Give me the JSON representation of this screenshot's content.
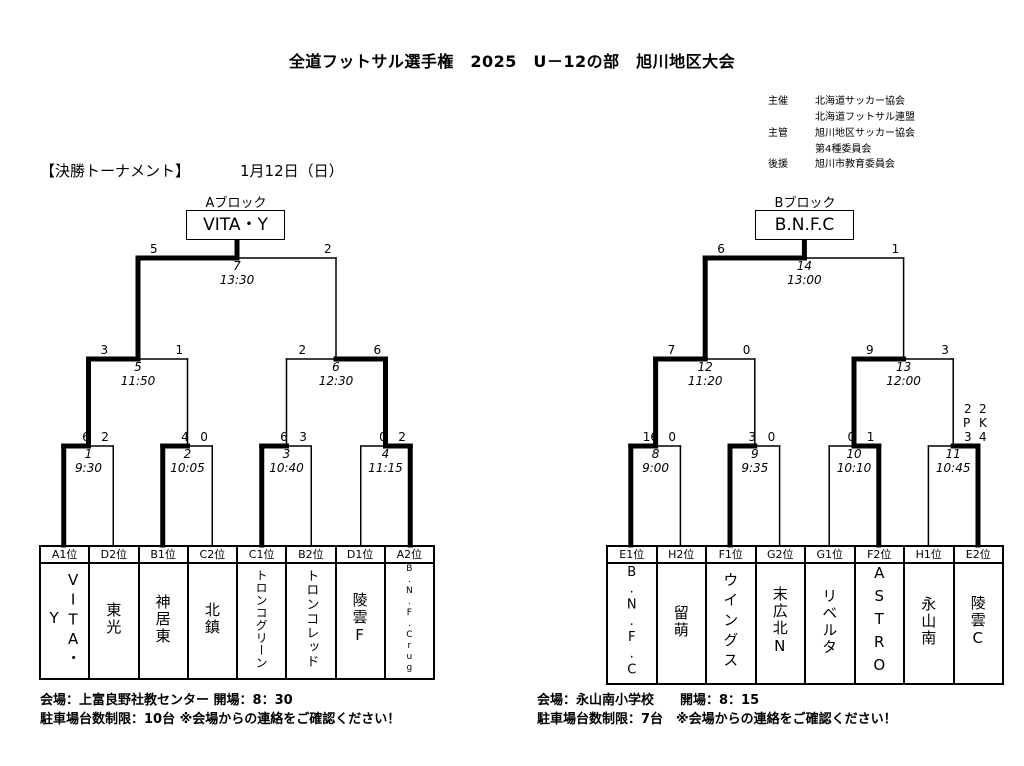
{
  "title": "全道フットサル選手権　2025　U－12の部　旭川地区大会",
  "organizers": [
    {
      "role": "主催",
      "name": "北海道サッカー協会"
    },
    {
      "role": "",
      "name": "北海道フットサル連盟"
    },
    {
      "role": "主管",
      "name": "旭川地区サッカー協会"
    },
    {
      "role": "",
      "name": "第4種委員会"
    },
    {
      "role": "後援",
      "name": "旭川市教育委員会"
    }
  ],
  "section_label": "【決勝トーナメント】",
  "date": "1月12日（日）",
  "brackets": [
    {
      "block": "Aブロック",
      "champion": "VITA・Y",
      "teams": [
        {
          "pos": "A1位",
          "name": "VITA・Y"
        },
        {
          "pos": "D2位",
          "name": "東光"
        },
        {
          "pos": "B1位",
          "name": "神居東"
        },
        {
          "pos": "C2位",
          "name": "北鎮"
        },
        {
          "pos": "C1位",
          "name": "トロンコグリーン"
        },
        {
          "pos": "B2位",
          "name": "トロンコレッド"
        },
        {
          "pos": "D1位",
          "name": "陵雲F"
        },
        {
          "pos": "A2位",
          "name": "B.N.F.Crug"
        }
      ],
      "matches": [
        {
          "no": "1",
          "time": "9:30",
          "score": [
            "6",
            "2"
          ],
          "winner": "left"
        },
        {
          "no": "2",
          "time": "10:05",
          "score": [
            "4",
            "0"
          ],
          "winner": "left"
        },
        {
          "no": "3",
          "time": "10:40",
          "score": [
            "6",
            "3"
          ],
          "winner": "left"
        },
        {
          "no": "4",
          "time": "11:15",
          "score": [
            "0",
            "2"
          ],
          "winner": "right"
        },
        {
          "no": "5",
          "time": "11:50",
          "score": [
            "3",
            "1"
          ],
          "winner": "left"
        },
        {
          "no": "6",
          "time": "12:30",
          "score": [
            "2",
            "6"
          ],
          "winner": "right"
        },
        {
          "no": "7",
          "time": "13:30",
          "score": [
            "5",
            "2"
          ],
          "winner": "left"
        }
      ],
      "footer": [
        "会場：上富良野社教センター 開場：8：30",
        "駐車場台数制限：10台 ※会場からの連絡をご確認ください！"
      ]
    },
    {
      "block": "Bブロック",
      "champion": "B.N.F.C",
      "teams": [
        {
          "pos": "E1位",
          "name": "B.N.F.C"
        },
        {
          "pos": "H2位",
          "name": "留萌"
        },
        {
          "pos": "F1位",
          "name": "ウイングス"
        },
        {
          "pos": "G2位",
          "name": "末広北N"
        },
        {
          "pos": "G1位",
          "name": "リベルタ"
        },
        {
          "pos": "F2位",
          "name": "ASTRO"
        },
        {
          "pos": "H1位",
          "name": "永山南"
        },
        {
          "pos": "E2位",
          "name": "陵雲C"
        }
      ],
      "matches": [
        {
          "no": "8",
          "time": "9:00",
          "score": [
            "16",
            "0"
          ],
          "winner": "left"
        },
        {
          "no": "9",
          "time": "9:35",
          "score": [
            "3",
            "0"
          ],
          "winner": "left"
        },
        {
          "no": "10",
          "time": "10:10",
          "score": [
            "0",
            "1"
          ],
          "winner": "right"
        },
        {
          "no": "11",
          "time": "10:45",
          "score": [
            "2",
            "2"
          ],
          "pk_label": [
            "P",
            "K"
          ],
          "pk": [
            "3",
            "4"
          ],
          "winner": "right"
        },
        {
          "no": "12",
          "time": "11:20",
          "score": [
            "7",
            "0"
          ],
          "winner": "left"
        },
        {
          "no": "13",
          "time": "12:00",
          "score": [
            "9",
            "3"
          ],
          "winner": "left"
        },
        {
          "no": "14",
          "time": "13:00",
          "score": [
            "6",
            "1"
          ],
          "winner": "left"
        }
      ],
      "footer": [
        "会場：永山南小学校　　開場：8：15",
        "駐車場台数制限：7台　※会場からの連絡をご確認ください！"
      ]
    }
  ]
}
